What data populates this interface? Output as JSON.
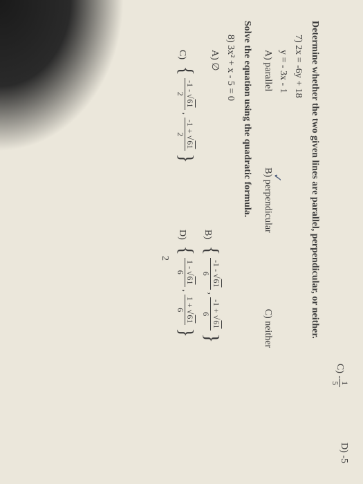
{
  "topfrac": {
    "label": "C)",
    "num": "1",
    "den": "5"
  },
  "topD": "D) -5",
  "section1": {
    "title": "Determine whether the two given lines are parallel, perpendicular, or neither.",
    "qnum": "7)",
    "eq1": "2x = -6y + 18",
    "eq2": "y = - 3x - 1",
    "A": "A) parallel",
    "B": "B) perpendicular",
    "C": "C) neither"
  },
  "section2": {
    "title": "Solve the equation using the quadratic formula.",
    "qnum": "8)",
    "eq": "3x² + x - 5 = 0",
    "A": "A) ∅",
    "B": {
      "label": "B)",
      "n1": "-1 - √",
      "r": "61",
      "n2": "-1 + √",
      "den": "6"
    },
    "C": {
      "label": "C)",
      "n1": "-1 - √",
      "r": "61",
      "n2": "-1 + √",
      "den": "2"
    },
    "D": {
      "label": "D)",
      "n1": "1 - √",
      "r": "61",
      "n2": "1 + √",
      "den": "6"
    }
  },
  "lone": "2"
}
